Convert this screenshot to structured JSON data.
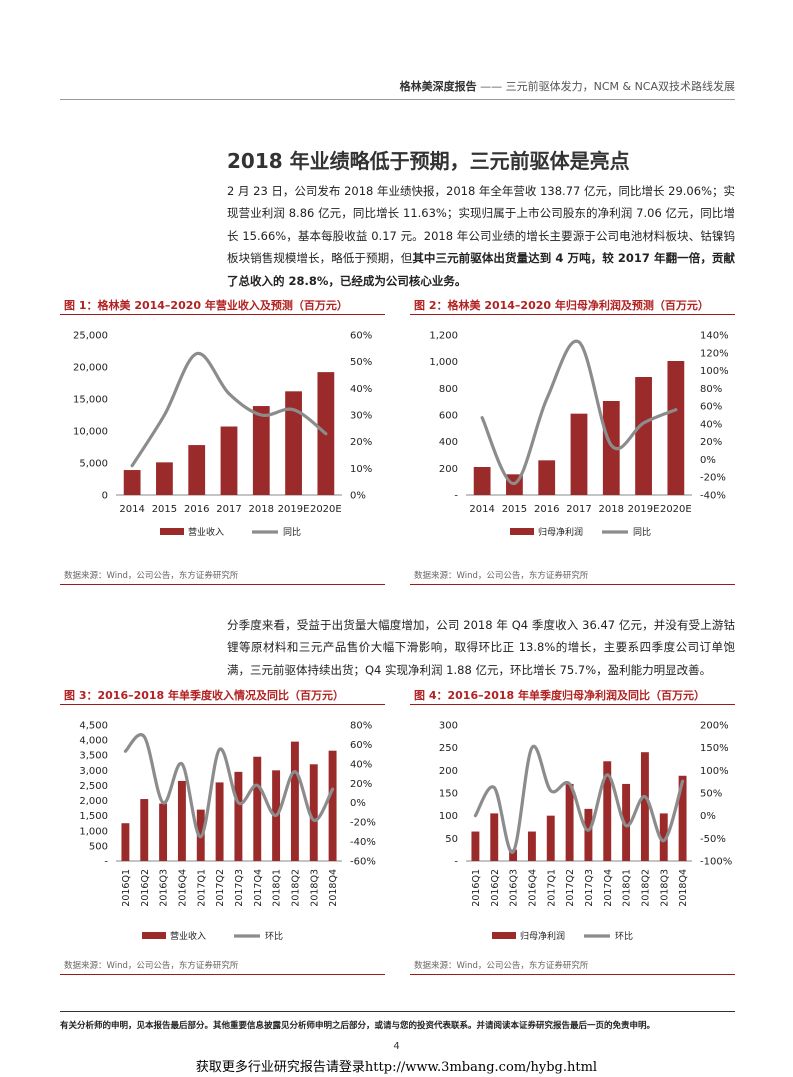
{
  "header": {
    "report_name": "格林美深度报告",
    "separator": " —— ",
    "subtitle": "三元前驱体发力，NCM & NCA双技术路线发展"
  },
  "section_title": "2018 年业绩略低于预期，三元前驱体是亮点",
  "paragraph1": {
    "text": "2 月 23 日，公司发布 2018 年业绩快报，2018 年全年营收 138.77 亿元，同比增长 29.06%；实现营业利润 8.86 亿元，同比增长 11.63%；实现归属于上市公司股东的净利润 7.06 亿元，同比增长 15.66%，基本每股收益 0.17 元。2018 年公司业绩的增长主要源于公司电池材料板块、钴镍钨板块销售规模增长，略低于预期，但",
    "bold": "其中三元前驱体出货量达到 4 万吨，较 2017 年翻一倍，贡献了总收入的 28.8%，已经成为公司核心业务。"
  },
  "paragraph2": {
    "text": "分季度来看，受益于出货量大幅度增加，公司 2018 年 Q4 季度收入 36.47 亿元，并没有受上游钴锂等原材料和三元产品售价大幅下滑影响，取得环比正 13.8%的增长，主要系四季度公司订单饱满，三元前驱体持续出货；Q4 实现净利润 1.88 亿元，环比增长 75.7%，盈利能力明显改善。"
  },
  "colors": {
    "bar": "#9b2a2a",
    "line": "#8c8c8c",
    "accent": "#b22222"
  },
  "figures": {
    "fig1": {
      "title": "图 1：格林美 2014–2020 年营业收入及预测（百万元）",
      "source": "数据来源：Wind，公司公告，东方证券研究所"
    },
    "fig2": {
      "title": "图 2：格林美 2014–2020 年归母净利润及预测（百万元）",
      "source": "数据来源：Wind，公司公告，东方证券研究所"
    },
    "fig3": {
      "title": "图 3：2016–2018 年单季度收入情况及同比（百万元）",
      "source": "数据来源：Wind，公司公告，东方证券研究所"
    },
    "fig4": {
      "title": "图 4：2016–2018 年单季度归母净利润及同比（百万元）",
      "source": "数据来源：Wind，公司公告，东方证券研究所"
    }
  },
  "chart_data": [
    {
      "id": "fig1",
      "type": "bar",
      "categories": [
        "2014",
        "2015",
        "2016",
        "2017",
        "2018",
        "2019E",
        "2020E"
      ],
      "series": [
        {
          "name": "营业收入",
          "type": "bar",
          "axis": "left",
          "values": [
            3900,
            5100,
            7800,
            10700,
            13900,
            16200,
            19200
          ]
        },
        {
          "name": "同比",
          "type": "line",
          "axis": "right",
          "values": [
            11,
            30,
            53,
            38,
            30,
            32,
            23
          ]
        }
      ],
      "y_left": {
        "min": 0,
        "max": 25000,
        "ticks": [
          0,
          5000,
          10000,
          15000,
          20000,
          25000
        ],
        "labels": [
          "0",
          "5,000",
          "10,000",
          "15,000",
          "20,000",
          "25,000"
        ]
      },
      "y_right": {
        "min": 0,
        "max": 60,
        "ticks": [
          0,
          10,
          20,
          30,
          40,
          50,
          60
        ],
        "labels": [
          "0%",
          "10%",
          "20%",
          "30%",
          "40%",
          "50%",
          "60%"
        ]
      },
      "grid": false,
      "legend": "bottom"
    },
    {
      "id": "fig2",
      "type": "bar",
      "categories": [
        "2014",
        "2015",
        "2016",
        "2017",
        "2018",
        "2019E",
        "2020E"
      ],
      "series": [
        {
          "name": "归母净利润",
          "type": "bar",
          "axis": "left",
          "values": [
            210,
            155,
            260,
            610,
            705,
            885,
            1005
          ]
        },
        {
          "name": "同比",
          "type": "line",
          "axis": "right",
          "values": [
            47,
            -27,
            68,
            132,
            16,
            41,
            56
          ]
        }
      ],
      "y_left": {
        "min": 0,
        "max": 1200,
        "ticks": [
          0,
          200,
          400,
          600,
          800,
          1000,
          1200
        ],
        "labels": [
          "-",
          "200",
          "400",
          "600",
          "800",
          "1,000",
          "1,200"
        ]
      },
      "y_right": {
        "min": -40,
        "max": 140,
        "ticks": [
          -40,
          -20,
          0,
          20,
          40,
          60,
          80,
          100,
          120,
          140
        ],
        "labels": [
          "-40%",
          "-20%",
          "0%",
          "20%",
          "40%",
          "60%",
          "80%",
          "100%",
          "120%",
          "140%"
        ]
      },
      "grid": false,
      "legend": "bottom"
    },
    {
      "id": "fig3",
      "type": "bar",
      "categories": [
        "2016Q1",
        "2016Q2",
        "2016Q3",
        "2016Q4",
        "2017Q1",
        "2017Q2",
        "2017Q3",
        "2017Q4",
        "2018Q1",
        "2018Q2",
        "2018Q3",
        "2018Q4"
      ],
      "series": [
        {
          "name": "营业收入",
          "type": "bar",
          "axis": "left",
          "values": [
            1250,
            2050,
            1900,
            2650,
            1700,
            2600,
            2950,
            3450,
            3000,
            3950,
            3200,
            3650
          ]
        },
        {
          "name": "环比",
          "type": "line",
          "axis": "right",
          "values": [
            53,
            68,
            0,
            40,
            -35,
            55,
            0,
            18,
            -13,
            32,
            -18,
            14
          ]
        }
      ],
      "y_left": {
        "min": 0,
        "max": 4500,
        "ticks": [
          0,
          500,
          1000,
          1500,
          2000,
          2500,
          3000,
          3500,
          4000,
          4500
        ],
        "labels": [
          "-",
          "500",
          "1,000",
          "1,500",
          "2,000",
          "2,500",
          "3,000",
          "3,500",
          "4,000",
          "4,500"
        ]
      },
      "y_right": {
        "min": -60,
        "max": 80,
        "ticks": [
          -60,
          -40,
          -20,
          0,
          20,
          40,
          60,
          80
        ],
        "labels": [
          "-60%",
          "-40%",
          "-20%",
          "0%",
          "20%",
          "40%",
          "60%",
          "80%"
        ]
      },
      "grid": false,
      "legend": "bottom"
    },
    {
      "id": "fig4",
      "type": "bar",
      "categories": [
        "2016Q1",
        "2016Q2",
        "2016Q3",
        "2016Q4",
        "2017Q1",
        "2017Q2",
        "2017Q3",
        "2017Q4",
        "2018Q1",
        "2018Q2",
        "2018Q3",
        "2018Q4"
      ],
      "series": [
        {
          "name": "归母净利润",
          "type": "bar",
          "axis": "left",
          "values": [
            65,
            105,
            25,
            65,
            100,
            170,
            115,
            220,
            170,
            240,
            105,
            188
          ]
        },
        {
          "name": "环比",
          "type": "line",
          "axis": "right",
          "values": [
            0,
            62,
            -80,
            150,
            55,
            70,
            -32,
            90,
            -22,
            42,
            -55,
            76
          ]
        }
      ],
      "y_left": {
        "min": 0,
        "max": 300,
        "ticks": [
          0,
          50,
          100,
          150,
          200,
          250,
          300
        ],
        "labels": [
          "-",
          "50",
          "100",
          "150",
          "200",
          "250",
          "300"
        ]
      },
      "y_right": {
        "min": -100,
        "max": 200,
        "ticks": [
          -100,
          -50,
          0,
          50,
          100,
          150,
          200
        ],
        "labels": [
          "-100%",
          "-50%",
          "0%",
          "50%",
          "100%",
          "150%",
          "200%"
        ]
      },
      "grid": false,
      "legend": "bottom"
    }
  ],
  "disclaimer": "有关分析师的申明，见本报告最后部分。其他重要信息披露见分析师申明之后部分，或请与您的投资代表联系。并请阅读本证券研究报告最后一页的免责申明。",
  "page_number": "4",
  "footer_link": "获取更多行业研究报告请登录http://www.3mbang.com/hybg.html"
}
